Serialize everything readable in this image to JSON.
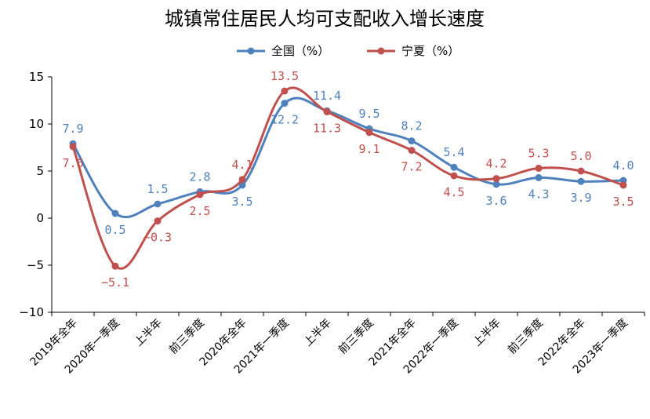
{
  "chart_data": {
    "type": "line",
    "title": "城镇常住居民人均可支配收入增长速度",
    "categories": [
      "2019年全年",
      "2020年一季度",
      "上半年",
      "前三季度",
      "2020年全年",
      "2021年一季度",
      "上半年",
      "前三季度",
      "2021年全年",
      "2022年一季度",
      "上半年",
      "前三季度",
      "2022年全年",
      "2023年一季度"
    ],
    "ylim": [
      -10,
      15
    ],
    "yticks": [
      "15",
      "10",
      "5",
      "0",
      "−5",
      "−10"
    ],
    "ytick_values": [
      15,
      10,
      5,
      0,
      -5,
      -10
    ],
    "grid": false,
    "legend_position": "top",
    "series": [
      {
        "name": "全国（%）",
        "color": "#4f81bd",
        "values": [
          7.9,
          0.5,
          1.5,
          2.8,
          3.5,
          12.2,
          11.4,
          9.5,
          8.2,
          5.4,
          3.6,
          4.3,
          3.9,
          4.0
        ],
        "labels": [
          "7.9",
          "0.5",
          "1.5",
          "2.8",
          "3.5",
          "12.2",
          "11.4",
          "9.5",
          "8.2",
          "5.4",
          "3.6",
          "4.3",
          "3.9",
          "4.0"
        ]
      },
      {
        "name": "宁夏（%）",
        "color": "#c0504d",
        "values": [
          7.6,
          -5.1,
          -0.3,
          2.5,
          4.1,
          13.5,
          11.3,
          9.1,
          7.2,
          4.5,
          4.2,
          5.3,
          5.0,
          3.5
        ],
        "labels": [
          "7.6",
          "−5.1",
          "−0.3",
          "2.5",
          "4.1",
          "13.5",
          "11.3",
          "9.1",
          "7.2",
          "4.5",
          "4.2",
          "5.3",
          "5.0",
          "3.5"
        ]
      }
    ]
  }
}
